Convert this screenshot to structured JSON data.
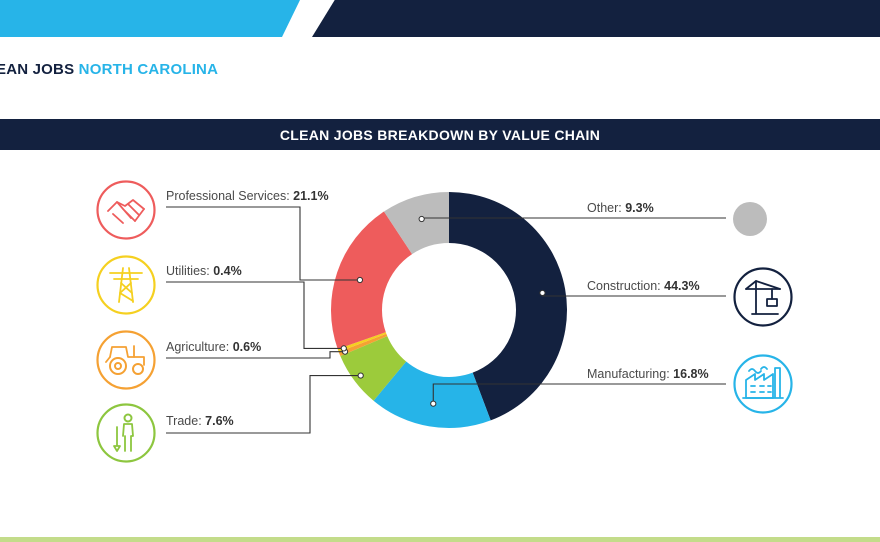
{
  "header": {
    "brand_part1": "EAN JOBS",
    "brand_part2": "NORTH CAROLINA"
  },
  "colors": {
    "navy": "#13213f",
    "cyan": "#27b4e8",
    "lime": "#c3dc8a"
  },
  "chart_data": {
    "type": "pie",
    "variant": "donut",
    "title": "CLEAN JOBS BREAKDOWN BY VALUE CHAIN",
    "slices": [
      {
        "name": "Construction",
        "value": 44.3,
        "label": "Construction:",
        "value_label": "44.3%",
        "color": "#13213f",
        "icon": "crane-icon"
      },
      {
        "name": "Manufacturing",
        "value": 16.8,
        "label": "Manufacturing:",
        "value_label": "16.8%",
        "color": "#26b4e8",
        "icon": "factory-icon"
      },
      {
        "name": "Trade",
        "value": 7.6,
        "label": "Trade:",
        "value_label": "7.6%",
        "color": "#9ccb3b",
        "icon": "worker-icon"
      },
      {
        "name": "Agriculture",
        "value": 0.6,
        "label": "Agriculture:",
        "value_label": "0.6%",
        "color": "#f5a133",
        "icon": "tractor-icon"
      },
      {
        "name": "Utilities",
        "value": 0.4,
        "label": "Utilities:",
        "value_label": "0.4%",
        "color": "#f5d020",
        "icon": "power-tower-icon"
      },
      {
        "name": "Professional Services",
        "value": 21.1,
        "label": "Professional Services:",
        "value_label": "21.1%",
        "color": "#ee5c5c",
        "icon": "handshake-icon"
      },
      {
        "name": "Other",
        "value": 9.3,
        "label": "Other:",
        "value_label": "9.3%",
        "color": "#bcbcbc",
        "icon": "circle-icon"
      }
    ]
  }
}
